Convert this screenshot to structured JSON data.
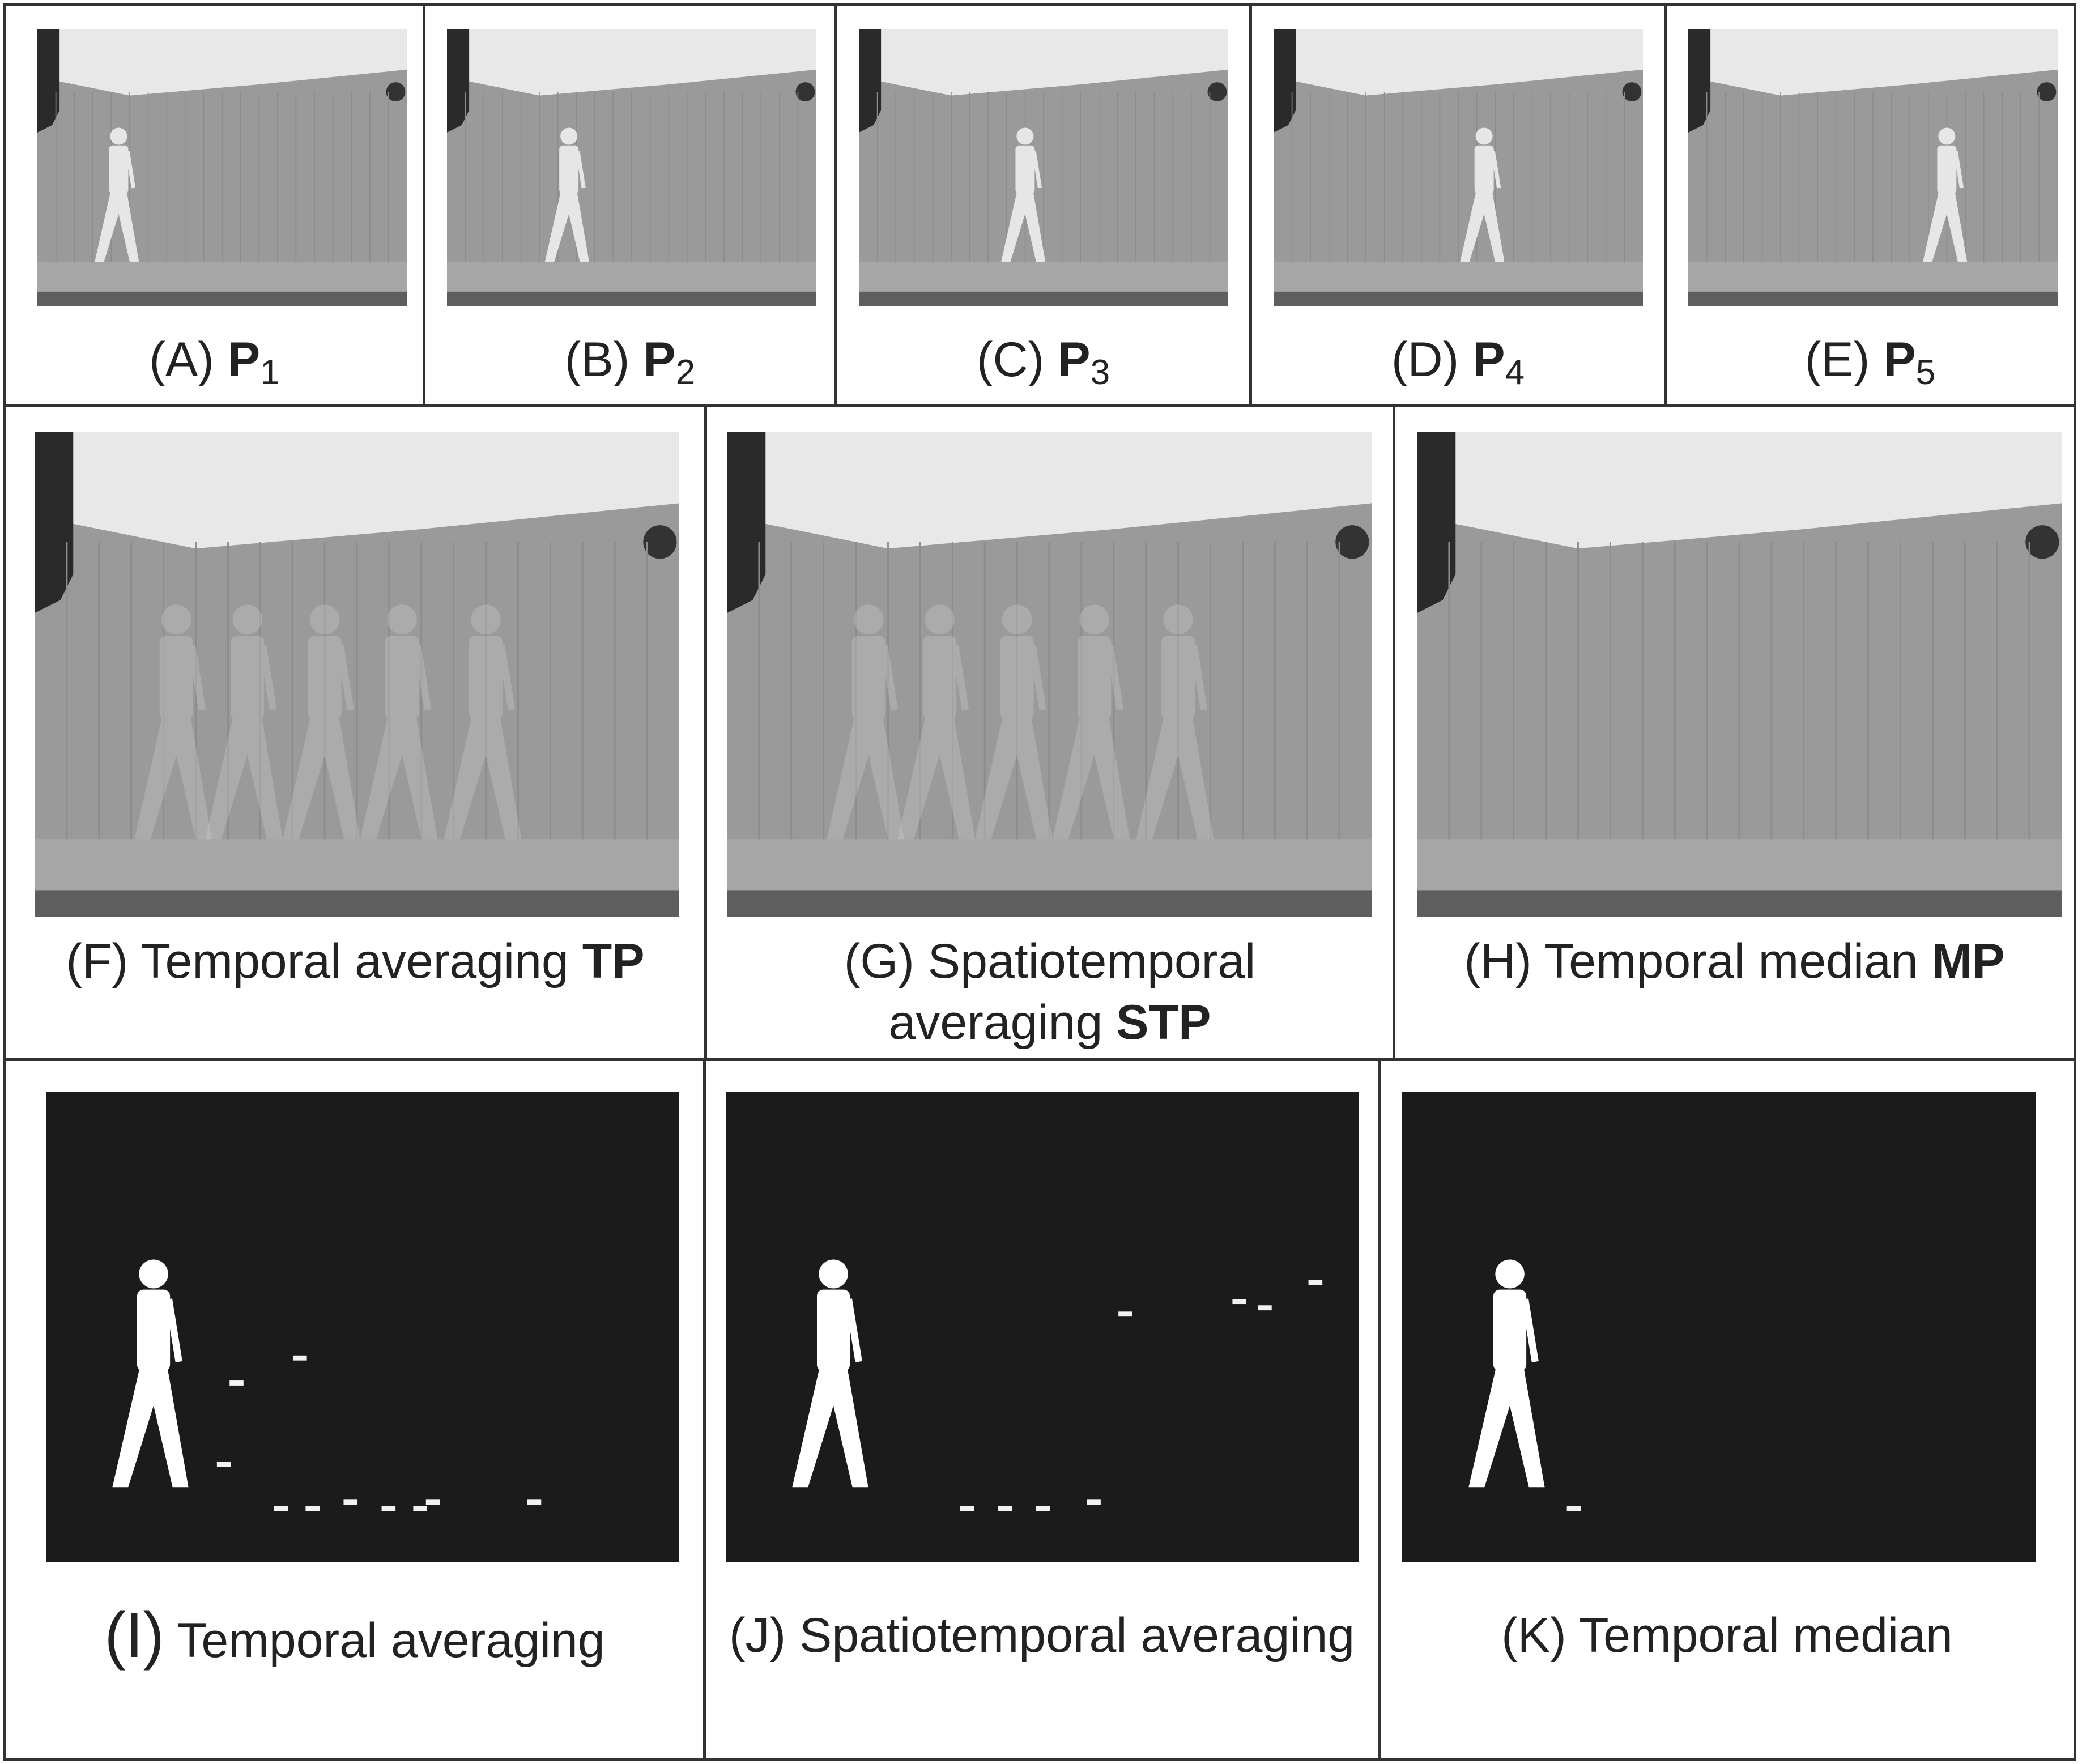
{
  "colors": {
    "border": "#333333",
    "ceiling": "#e8e8e8",
    "curtain": "#9a9a9a",
    "floor": "#a6a6a6",
    "mask_background": "#1b1b1b",
    "silhouette": "#ffffff"
  },
  "row1": [
    {
      "id": "A",
      "prefix": "(A) ",
      "bold": "P",
      "sub": "1",
      "figure_frac": 0.22
    },
    {
      "id": "B",
      "prefix": "(B) ",
      "bold": "P",
      "sub": "2",
      "figure_frac": 0.33
    },
    {
      "id": "C",
      "prefix": "(C) ",
      "bold": "P",
      "sub": "3",
      "figure_frac": 0.45
    },
    {
      "id": "D",
      "prefix": "(D) ",
      "bold": "P",
      "sub": "4",
      "figure_frac": 0.57
    },
    {
      "id": "E",
      "prefix": "(E) ",
      "bold": "P",
      "sub": "5",
      "figure_frac": 0.7
    }
  ],
  "row2": [
    {
      "id": "F",
      "line1": "(F) Temporal averaging ",
      "bold": "TP",
      "line2": ""
    },
    {
      "id": "G",
      "line1": "(G) Spatiotemporal",
      "line2": "averaging ",
      "bold": "STP"
    },
    {
      "id": "H",
      "line1": "(H) Temporal median ",
      "bold": "MP",
      "line2": ""
    }
  ],
  "row3": [
    {
      "id": "I",
      "letter": "(I)",
      "text": " Temporal averaging"
    },
    {
      "id": "J",
      "letter": "(J)",
      "text": " Spatiotemporal averaging"
    },
    {
      "id": "K",
      "letter": "(K)",
      "text": " Temporal median"
    }
  ]
}
